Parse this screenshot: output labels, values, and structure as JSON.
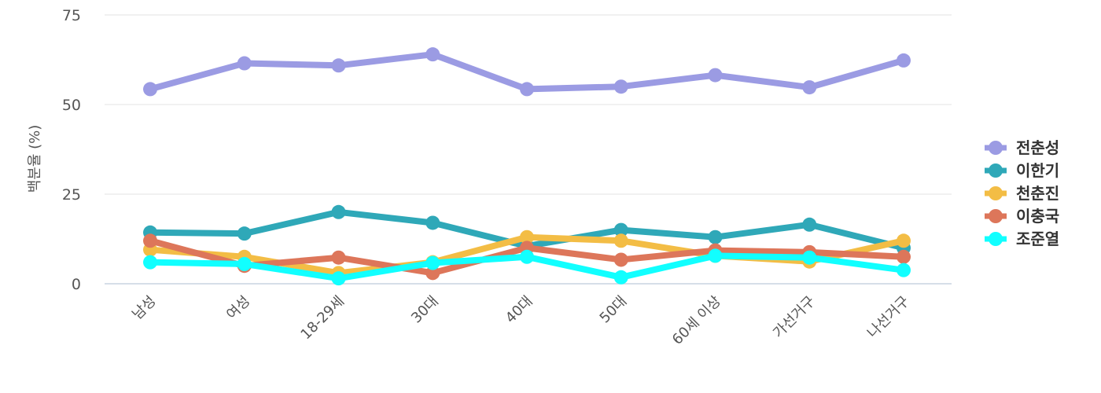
{
  "chart_data": {
    "type": "line",
    "ylabel": "백분율 (%)",
    "ylim": [
      0,
      75
    ],
    "yticks": [
      0,
      25,
      50,
      75
    ],
    "grid": true,
    "legend_position": "right",
    "categories": [
      "남성",
      "여성",
      "18-29세",
      "30대",
      "40대",
      "50대",
      "60세 이상",
      "가선거구",
      "나선거구"
    ],
    "series": [
      {
        "name": "전춘성",
        "color": "#9b9be3",
        "values": [
          54.3,
          61.5,
          60.9,
          64.0,
          54.3,
          55.0,
          58.2,
          54.8,
          62.3
        ]
      },
      {
        "name": "이한기",
        "color": "#2fa8b8",
        "values": [
          14.3,
          14.0,
          20.0,
          17.0,
          10.5,
          15.0,
          13.0,
          16.5,
          10.0
        ]
      },
      {
        "name": "천춘진",
        "color": "#f3bd45",
        "values": [
          9.5,
          7.5,
          3.0,
          6.0,
          13.0,
          12.0,
          7.8,
          6.2,
          12.0
        ]
      },
      {
        "name": "이충국",
        "color": "#dd765a",
        "values": [
          12.0,
          5.0,
          7.3,
          3.0,
          10.0,
          6.7,
          9.3,
          8.8,
          7.5
        ]
      },
      {
        "name": "조준열",
        "color": "#11ffff",
        "values": [
          6.0,
          5.5,
          1.5,
          5.8,
          7.5,
          1.8,
          7.8,
          7.3,
          3.8
        ]
      }
    ]
  }
}
